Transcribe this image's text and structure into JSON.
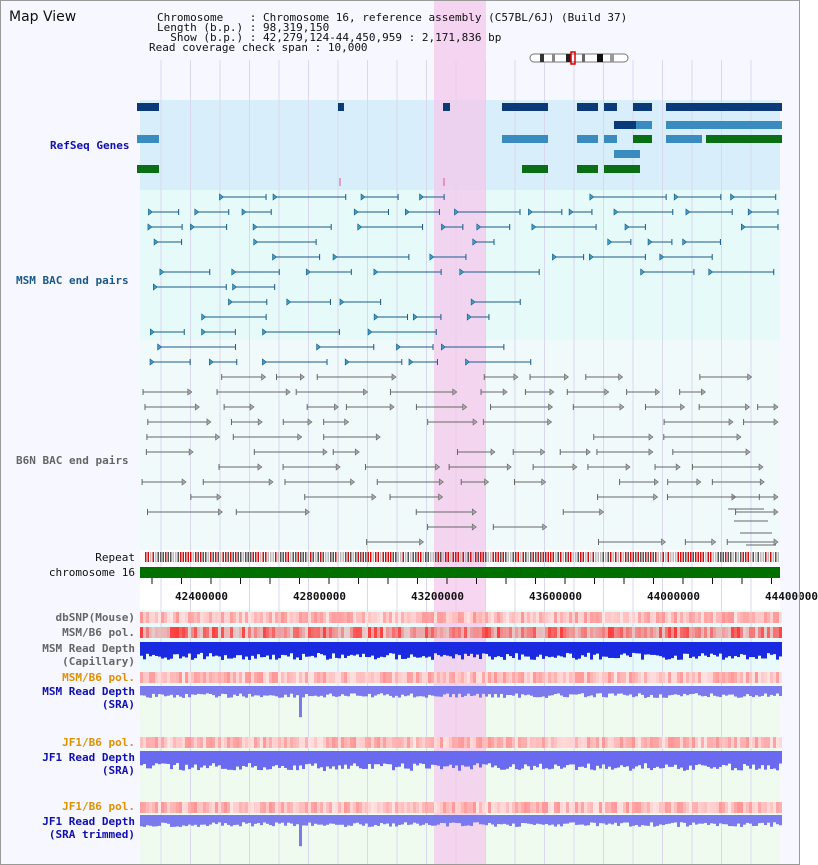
{
  "title": "Map View",
  "info": {
    "chromosome_label": "Chromosome    ",
    "chromosome_value": ": Chromosome 16, reference assembly (C57BL/6J) (Build 37)",
    "length_label": "Length (b.p.)",
    "length_value": ": 98,319,150",
    "show_label": "  Show (b.p.)",
    "show_value": ": 42,279,124-44,450,959 : 2,171,836 bp",
    "read_label": "Read coverage check span",
    "read_value": ": 10,000"
  },
  "tracks": {
    "refseq": "RefSeq Genes",
    "msm_bac": "MSM BAC end pairs",
    "b6n_bac": "B6N BAC end pairs",
    "repeat": "Repeat",
    "chromosome": "chromosome 16",
    "dbsnp": "dbSNP(Mouse)",
    "msm_pol": "MSM/B6 pol.",
    "msm_depth_cap_1": "MSM Read Depth",
    "msm_depth_cap_2": "(Capillary)",
    "msm_pol2": "MSM/B6 pol.",
    "msm_depth_sra_1": "MSM Read Depth",
    "msm_depth_sra_2": "(SRA)",
    "jf1_pol": "JF1/B6 pol.",
    "jf1_depth_sra_1": "JF1 Read Depth",
    "jf1_depth_sra_2": "(SRA)",
    "jf1_pol2": "JF1/B6 pol.",
    "jf1_depth_trim_1": "JF1 Read Depth",
    "jf1_depth_trim_2": "(SRA trimmed)"
  },
  "axis_ticks": [
    "42400000",
    "42800000",
    "43200000",
    "43600000",
    "44000000",
    "44400000"
  ],
  "colors": {
    "refseq_dark": "#0a3a78",
    "refseq_light": "#3a8cc0",
    "refseq_green": "#0a6e14",
    "msm_line": "#1a5a8a",
    "b6n_line": "#666666",
    "chromosome_bar": "#007000",
    "highlight": "#f4c8ec",
    "label_blue": "#1010b0",
    "label_orange": "#e09000"
  }
}
